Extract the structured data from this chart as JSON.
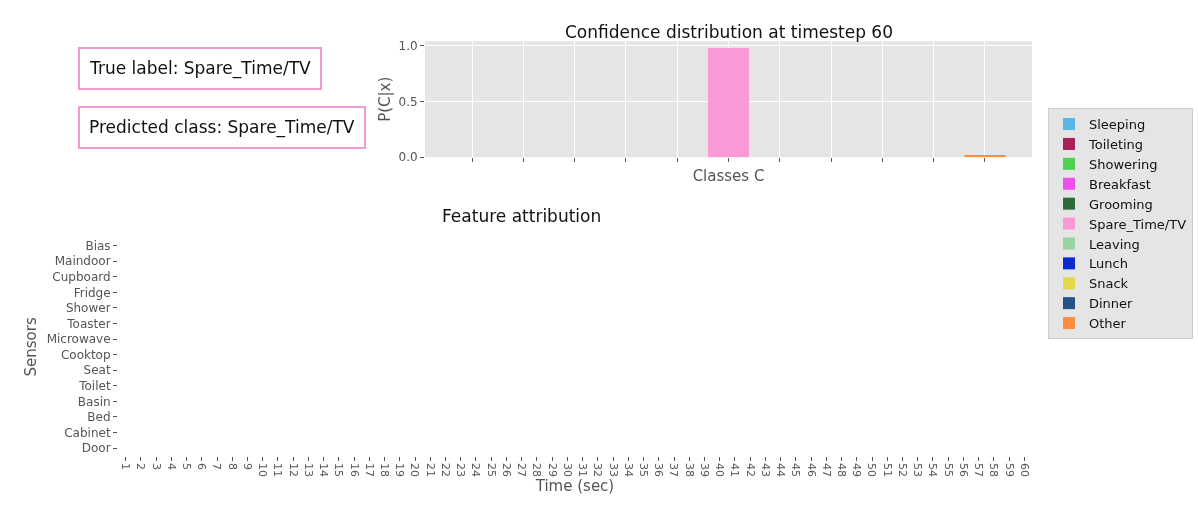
{
  "chart_data": [
    {
      "type": "bar",
      "title": "Confidence distribution at timestep 60",
      "annotations": [
        "True label: Spare_Time/TV",
        "Predicted class: Spare_Time/TV"
      ],
      "color": "#f49ad0",
      "xlabel": "Classes C",
      "ylabel": "P(C|x)",
      "categories": [
        null,
        null,
        null,
        null,
        null,
        null,
        null,
        null,
        null,
        null,
        null
      ],
      "ylim": [
        0,
        1.04
      ],
      "yticks": [
        {
          "value": 0,
          "label": "0.0"
        },
        {
          "value": 0.5,
          "label": "0.5"
        },
        {
          "value": 1,
          "label": "1.0"
        }
      ],
      "grid": true,
      "legend": "right",
      "series": [
        {
          "name": "Sleeping",
          "color": "#5ab4e5",
          "values": [
            0,
            null,
            null,
            null,
            null,
            null,
            null,
            null,
            null,
            null,
            null
          ]
        },
        {
          "name": "Toileting",
          "color": "#a8205e",
          "values": [
            null,
            0,
            null,
            null,
            null,
            null,
            null,
            null,
            null,
            null,
            null
          ]
        },
        {
          "name": "Showering",
          "color": "#4fd14f",
          "values": [
            null,
            null,
            0,
            null,
            null,
            null,
            null,
            null,
            null,
            null,
            null
          ]
        },
        {
          "name": "Breakfast",
          "color": "#f04ff0",
          "values": [
            null,
            null,
            null,
            0,
            null,
            null,
            null,
            null,
            null,
            null,
            null
          ]
        },
        {
          "name": "Grooming",
          "color": "#2e6b3a",
          "values": [
            null,
            null,
            null,
            null,
            0,
            null,
            null,
            null,
            null,
            null,
            null
          ]
        },
        {
          "name": "Spare_Time/TV",
          "color": "#f99ad6",
          "values": [
            null,
            null,
            null,
            null,
            null,
            0.98,
            null,
            null,
            null,
            null,
            null
          ]
        },
        {
          "name": "Leaving",
          "color": "#96d4a0",
          "values": [
            null,
            null,
            null,
            null,
            null,
            null,
            0,
            null,
            null,
            null,
            null
          ]
        },
        {
          "name": "Lunch",
          "color": "#0c2bd0",
          "values": [
            null,
            null,
            null,
            null,
            null,
            null,
            null,
            0,
            null,
            null,
            null
          ]
        },
        {
          "name": "Snack",
          "color": "#e5d74a",
          "values": [
            null,
            null,
            null,
            null,
            null,
            null,
            null,
            null,
            0,
            null,
            null
          ]
        },
        {
          "name": "Dinner",
          "color": "#245284",
          "values": [
            null,
            null,
            null,
            null,
            null,
            null,
            null,
            null,
            null,
            0,
            null
          ]
        },
        {
          "name": "Other",
          "color": "#fd8d3c",
          "values": [
            null,
            null,
            null,
            null,
            null,
            null,
            null,
            null,
            null,
            null,
            0.02
          ]
        }
      ]
    },
    {
      "type": "heatmap",
      "title": "Feature attribution",
      "xlabel": "Time (sec)",
      "ylabel": "Sensors",
      "categories": [
        "1",
        "2",
        "3",
        "4",
        "5",
        "6",
        "7",
        "8",
        "9",
        "10",
        "11",
        "12",
        "13",
        "14",
        "15",
        "16",
        "17",
        "18",
        "19",
        "20",
        "21",
        "22",
        "23",
        "24",
        "25",
        "26",
        "27",
        "28",
        "29",
        "30",
        "31",
        "32",
        "33",
        "34",
        "35",
        "36",
        "37",
        "38",
        "39",
        "40",
        "41",
        "42",
        "43",
        "44",
        "45",
        "46",
        "47",
        "48",
        "49",
        "50",
        "51",
        "52",
        "53",
        "54",
        "55",
        "56",
        "57",
        "58",
        "59",
        "60"
      ],
      "y_categories": [
        "Bias",
        "Maindoor",
        "Cupboard",
        "Fridge",
        "Shower",
        "Toaster",
        "Microwave",
        "Cooktop",
        "Seat",
        "Toilet",
        "Basin",
        "Bed",
        "Cabinet",
        "Door"
      ],
      "cells": [
        [
          null,
          null,
          null,
          null,
          null,
          null,
          null,
          null,
          null,
          null,
          null,
          null,
          null,
          null,
          null,
          null,
          null,
          null,
          null,
          null,
          null,
          null,
          null,
          null,
          null,
          null,
          null,
          null,
          null,
          null,
          null,
          null,
          null,
          null,
          null,
          null,
          null,
          null,
          null,
          null,
          null,
          null,
          null,
          null,
          null,
          null,
          null,
          null,
          null,
          null,
          null,
          null,
          null,
          null,
          null,
          null,
          null,
          null,
          null,
          null
        ],
        [
          null,
          null,
          null,
          null,
          null,
          null,
          null,
          null,
          null,
          null,
          null,
          null,
          null,
          null,
          null,
          null,
          null,
          null,
          null,
          null,
          null,
          null,
          null,
          null,
          null,
          null,
          null,
          null,
          null,
          null,
          null,
          null,
          null,
          null,
          null,
          null,
          null,
          null,
          null,
          null,
          null,
          null,
          null,
          null,
          null,
          null,
          null,
          null,
          null,
          null,
          null,
          null,
          null,
          null,
          null,
          null,
          null,
          null,
          null,
          null
        ],
        [
          null,
          null,
          null,
          null,
          null,
          null,
          null,
          null,
          null,
          null,
          null,
          null,
          null,
          null,
          null,
          null,
          null,
          null,
          null,
          null,
          null,
          null,
          null,
          null,
          null,
          null,
          null,
          null,
          null,
          null,
          null,
          null,
          null,
          null,
          null,
          null,
          null,
          null,
          null,
          null,
          null,
          null,
          null,
          null,
          null,
          null,
          null,
          null,
          null,
          null,
          null,
          null,
          null,
          null,
          null,
          null,
          null,
          null,
          null,
          null
        ],
        [
          null,
          null,
          null,
          null,
          null,
          null,
          null,
          null,
          null,
          null,
          null,
          null,
          null,
          null,
          null,
          null,
          null,
          null,
          null,
          null,
          null,
          null,
          null,
          null,
          null,
          null,
          null,
          null,
          null,
          null,
          null,
          null,
          null,
          null,
          null,
          null,
          null,
          null,
          null,
          null,
          null,
          null,
          null,
          null,
          null,
          null,
          null,
          null,
          null,
          null,
          null,
          null,
          null,
          null,
          null,
          null,
          null,
          null,
          null,
          null
        ],
        [
          null,
          null,
          null,
          null,
          null,
          null,
          null,
          null,
          null,
          null,
          null,
          null,
          null,
          null,
          null,
          null,
          null,
          null,
          null,
          null,
          null,
          null,
          null,
          null,
          null,
          null,
          null,
          null,
          null,
          null,
          null,
          null,
          null,
          null,
          null,
          null,
          null,
          null,
          null,
          null,
          null,
          null,
          null,
          null,
          null,
          null,
          null,
          null,
          null,
          null,
          null,
          null,
          null,
          null,
          null,
          null,
          null,
          null,
          null,
          null
        ],
        [
          null,
          null,
          null,
          null,
          null,
          null,
          null,
          null,
          null,
          null,
          null,
          null,
          null,
          null,
          null,
          null,
          null,
          null,
          null,
          null,
          null,
          null,
          null,
          null,
          null,
          null,
          null,
          null,
          null,
          null,
          null,
          null,
          null,
          null,
          null,
          null,
          null,
          null,
          null,
          null,
          null,
          null,
          null,
          null,
          null,
          null,
          null,
          null,
          null,
          null,
          null,
          null,
          null,
          null,
          null,
          null,
          null,
          null,
          null,
          null
        ],
        [
          null,
          null,
          null,
          null,
          null,
          null,
          null,
          null,
          null,
          null,
          null,
          null,
          null,
          null,
          null,
          null,
          null,
          null,
          null,
          null,
          null,
          null,
          null,
          null,
          null,
          null,
          null,
          null,
          null,
          null,
          null,
          null,
          null,
          null,
          null,
          null,
          null,
          null,
          null,
          null,
          null,
          null,
          null,
          null,
          null,
          null,
          null,
          null,
          null,
          null,
          null,
          null,
          null,
          null,
          null,
          null,
          null,
          null,
          null,
          null
        ],
        [
          null,
          null,
          null,
          null,
          null,
          null,
          null,
          null,
          null,
          null,
          null,
          null,
          null,
          null,
          null,
          null,
          null,
          null,
          null,
          null,
          null,
          null,
          null,
          null,
          null,
          null,
          null,
          null,
          null,
          null,
          null,
          null,
          null,
          null,
          null,
          null,
          null,
          null,
          null,
          null,
          null,
          null,
          null,
          null,
          null,
          null,
          null,
          null,
          null,
          null,
          null,
          null,
          null,
          null,
          null,
          null,
          null,
          null,
          null,
          null
        ],
        [
          null,
          null,
          null,
          null,
          null,
          null,
          null,
          null,
          null,
          null,
          null,
          null,
          null,
          null,
          null,
          null,
          null,
          null,
          null,
          null,
          null,
          null,
          null,
          null,
          null,
          null,
          null,
          null,
          null,
          null,
          null,
          null,
          null,
          null,
          null,
          null,
          null,
          null,
          null,
          null,
          null,
          null,
          null,
          null,
          null,
          null,
          null,
          null,
          null,
          null,
          null,
          null,
          null,
          null,
          null,
          null,
          null,
          null,
          null,
          null
        ],
        [
          null,
          null,
          null,
          null,
          null,
          null,
          null,
          null,
          null,
          null,
          null,
          null,
          null,
          null,
          null,
          null,
          null,
          null,
          null,
          null,
          null,
          null,
          null,
          null,
          null,
          null,
          null,
          null,
          null,
          null,
          null,
          null,
          null,
          null,
          null,
          null,
          null,
          null,
          null,
          null,
          null,
          null,
          null,
          null,
          null,
          null,
          null,
          null,
          null,
          null,
          null,
          null,
          null,
          null,
          null,
          null,
          null,
          null,
          null,
          null
        ],
        [
          null,
          null,
          null,
          null,
          null,
          null,
          null,
          null,
          null,
          null,
          null,
          null,
          null,
          null,
          null,
          null,
          null,
          null,
          null,
          null,
          null,
          null,
          null,
          null,
          null,
          null,
          null,
          null,
          null,
          null,
          null,
          null,
          null,
          null,
          null,
          null,
          null,
          null,
          null,
          null,
          null,
          null,
          null,
          null,
          null,
          null,
          null,
          null,
          null,
          null,
          null,
          null,
          null,
          null,
          null,
          null,
          null,
          null,
          null,
          null
        ],
        [
          null,
          null,
          null,
          null,
          null,
          null,
          null,
          null,
          null,
          null,
          null,
          null,
          null,
          null,
          null,
          null,
          null,
          null,
          null,
          null,
          null,
          null,
          null,
          null,
          null,
          null,
          null,
          null,
          null,
          null,
          null,
          null,
          null,
          null,
          null,
          null,
          null,
          null,
          null,
          null,
          null,
          null,
          null,
          null,
          null,
          null,
          null,
          null,
          null,
          null,
          null,
          null,
          null,
          null,
          null,
          null,
          null,
          null,
          null,
          null
        ],
        [
          null,
          null,
          null,
          null,
          null,
          null,
          null,
          null,
          null,
          null,
          null,
          null,
          null,
          null,
          null,
          null,
          null,
          null,
          null,
          null,
          null,
          null,
          null,
          null,
          null,
          null,
          null,
          null,
          null,
          null,
          null,
          null,
          null,
          null,
          null,
          null,
          null,
          null,
          null,
          null,
          null,
          null,
          null,
          null,
          null,
          null,
          null,
          null,
          null,
          null,
          null,
          null,
          null,
          null,
          null,
          null,
          null,
          null,
          null,
          null
        ],
        [
          null,
          null,
          null,
          null,
          null,
          null,
          null,
          null,
          null,
          null,
          null,
          null,
          null,
          null,
          null,
          null,
          null,
          null,
          null,
          null,
          null,
          null,
          null,
          null,
          null,
          null,
          null,
          null,
          null,
          null,
          null,
          null,
          null,
          null,
          null,
          null,
          null,
          null,
          null,
          null,
          null,
          null,
          null,
          null,
          null,
          null,
          null,
          null,
          null,
          null,
          null,
          null,
          null,
          null,
          null,
          null,
          null,
          null,
          null,
          null
        ]
      ]
    }
  ]
}
